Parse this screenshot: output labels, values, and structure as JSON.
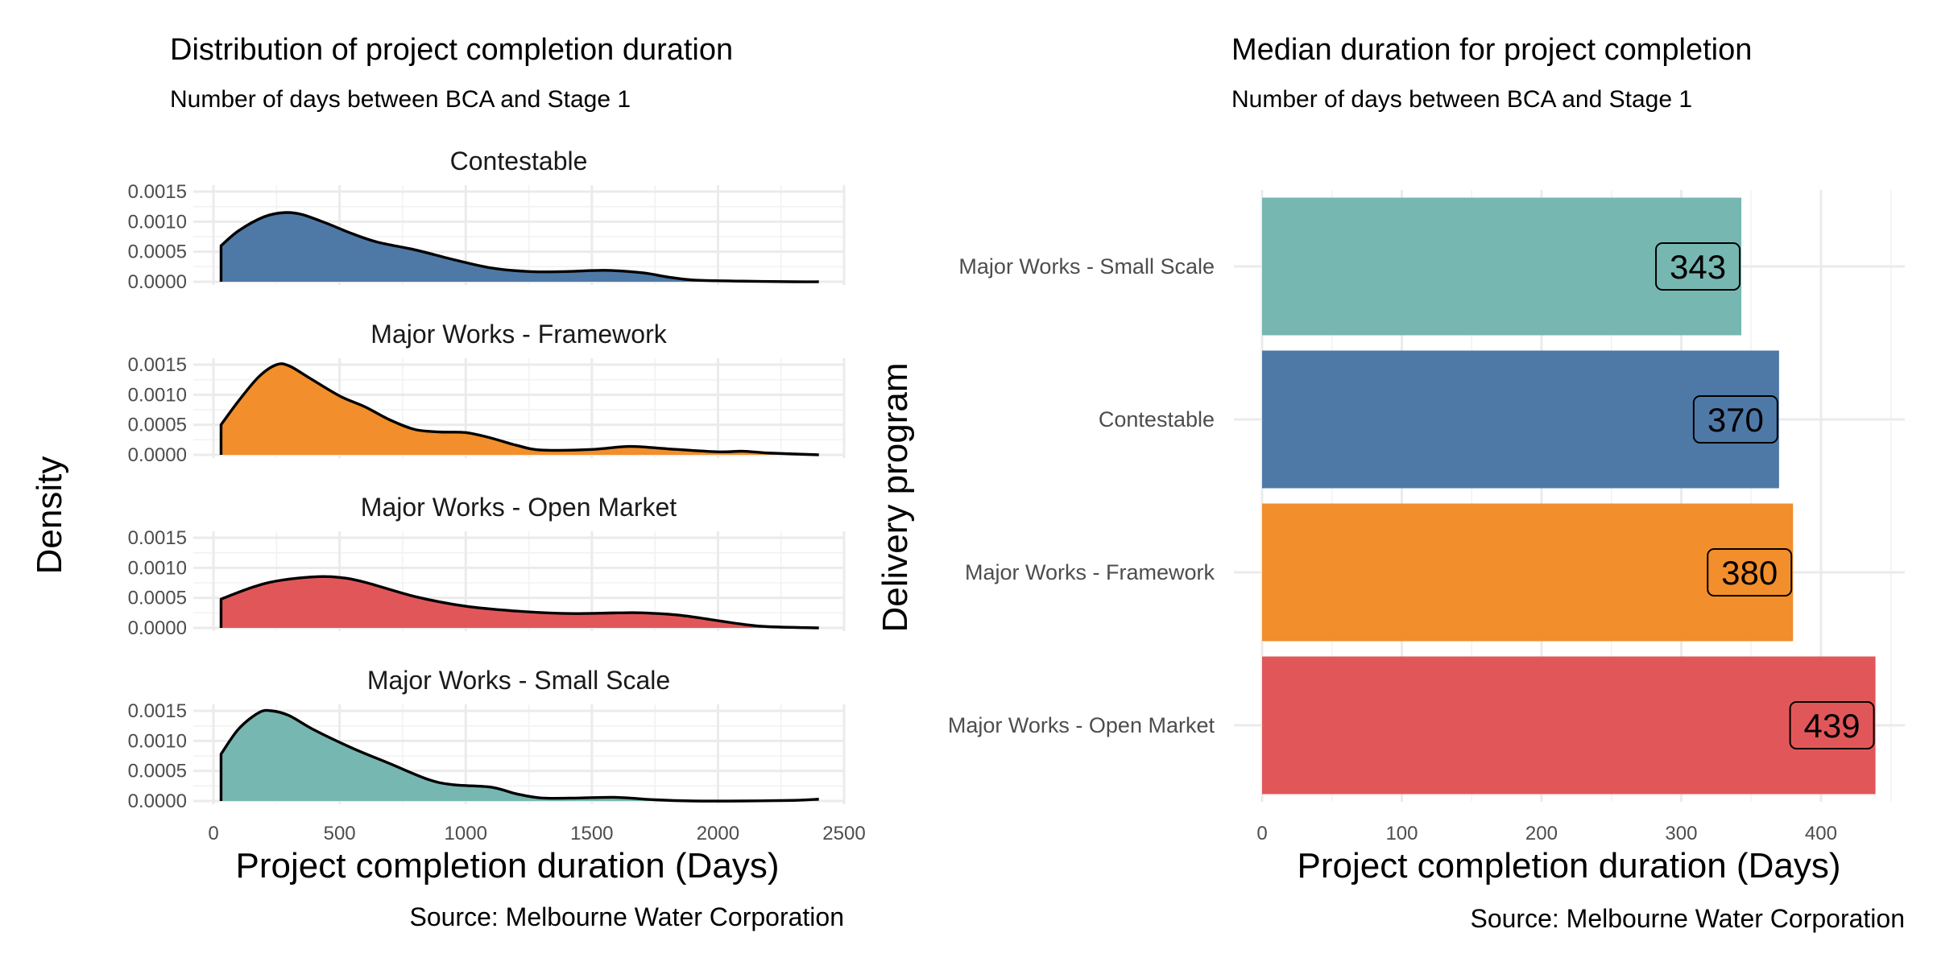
{
  "colors": {
    "Contestable": "#4E79A7",
    "Major Works - Framework": "#F28E2B",
    "Major Works - Open Market": "#E15759",
    "Major Works - Small Scale": "#76B7B2"
  },
  "chart_data": [
    {
      "type": "area",
      "title": "Distribution of project completion duration",
      "subtitle": "Number of days between BCA and Stage 1",
      "xlabel": "Project completion duration (Days)",
      "ylabel": "Density",
      "caption": "Source: Melbourne Water Corporation",
      "xlim": [
        -80,
        2500
      ],
      "ylim": [
        0,
        0.0015
      ],
      "xticks": [
        0,
        500,
        1000,
        1500,
        2000,
        2500
      ],
      "yticks": [
        "0.0000",
        "0.0005",
        "0.0010",
        "0.0015"
      ],
      "grid": true,
      "series": [
        {
          "name": "Contestable",
          "x": [
            30,
            100,
            200,
            280,
            350,
            450,
            550,
            650,
            800,
            950,
            1100,
            1250,
            1400,
            1550,
            1700,
            1800,
            1900,
            2100,
            2300,
            2400
          ],
          "y": [
            0.0006,
            0.00085,
            0.00108,
            0.00115,
            0.00112,
            0.00097,
            0.0008,
            0.00066,
            0.00053,
            0.00037,
            0.00023,
            0.00017,
            0.00017,
            0.00019,
            0.00015,
            8e-05,
            3e-05,
            1e-05,
            0.0,
            0.0
          ]
        },
        {
          "name": "Major Works - Framework",
          "x": [
            30,
            100,
            180,
            250,
            300,
            380,
            500,
            600,
            700,
            800,
            900,
            1000,
            1100,
            1200,
            1300,
            1500,
            1650,
            1800,
            2000,
            2100,
            2200,
            2400
          ],
          "y": [
            0.0005,
            0.0009,
            0.0013,
            0.0015,
            0.00148,
            0.00128,
            0.00098,
            0.0008,
            0.00058,
            0.00042,
            0.00038,
            0.00037,
            0.00028,
            0.00016,
            8e-05,
            9e-05,
            0.00014,
            0.0001,
            5e-05,
            6e-05,
            3e-05,
            0.0
          ]
        },
        {
          "name": "Major Works - Open Market",
          "x": [
            30,
            150,
            250,
            400,
            500,
            600,
            800,
            1000,
            1200,
            1400,
            1600,
            1700,
            1850,
            2000,
            2100,
            2200,
            2400
          ],
          "y": [
            0.00048,
            0.00067,
            0.00078,
            0.00085,
            0.00084,
            0.00076,
            0.00052,
            0.00036,
            0.00028,
            0.00024,
            0.00025,
            0.00025,
            0.00021,
            0.00012,
            6e-05,
            2e-05,
            0.0
          ]
        },
        {
          "name": "Major Works - Small Scale",
          "x": [
            30,
            100,
            180,
            230,
            300,
            400,
            550,
            700,
            850,
            950,
            1100,
            1200,
            1300,
            1450,
            1600,
            1750,
            1900,
            2100,
            2300,
            2400
          ],
          "y": [
            0.00078,
            0.0012,
            0.00147,
            0.0015,
            0.00142,
            0.00118,
            0.00088,
            0.00062,
            0.00036,
            0.00027,
            0.00023,
            0.00012,
            5e-05,
            5e-05,
            6e-05,
            2e-05,
            0.0,
            0.0,
            1e-05,
            3e-05
          ]
        }
      ]
    },
    {
      "type": "bar",
      "orientation": "horizontal",
      "title": "Median duration for project completion",
      "subtitle": "Number of days between BCA and Stage 1",
      "xlabel": "Project completion duration (Days)",
      "ylabel": "Delivery program",
      "caption": "Source: Melbourne Water Corporation",
      "xlim": [
        0,
        460
      ],
      "xticks": [
        0,
        100,
        200,
        300,
        400
      ],
      "grid": true,
      "categories": [
        "Major Works - Small Scale",
        "Contestable",
        "Major Works - Framework",
        "Major Works - Open Market"
      ],
      "values": [
        343,
        370,
        380,
        439
      ],
      "value_labels": [
        "343",
        "370",
        "380",
        "439"
      ]
    }
  ]
}
